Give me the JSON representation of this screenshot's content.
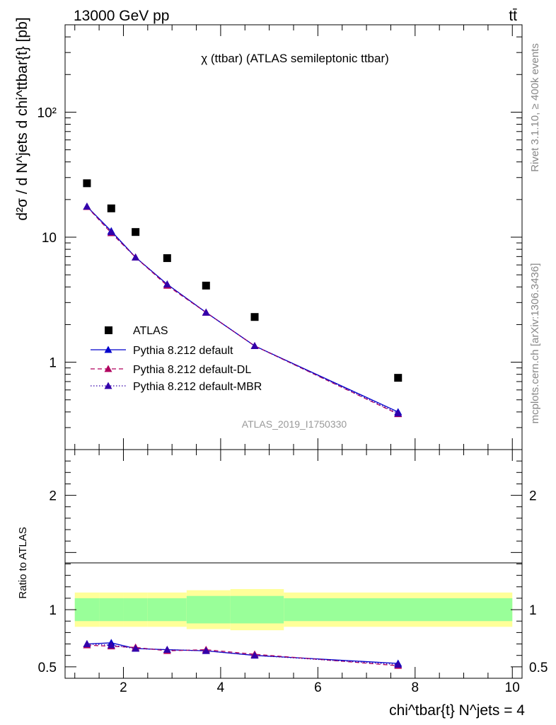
{
  "header": {
    "energy_label": "13000 GeV pp",
    "process_label": "tt̄"
  },
  "side_labels": {
    "rivet": "Rivet 3.1.10, ≥ 400k events",
    "mcplots": "mcplots.cern.ch [arXiv:1306.3436]"
  },
  "chart_data": {
    "type": "scatter",
    "title": "χ (ttbar) (ATLAS semileptonic ttbar)",
    "analysis_id": "ATLAS_2019_I1750330",
    "ylabel_main": "d²σ / d N^jets d chi^ttbar{t} [pb]",
    "ylabel_ratio": "Ratio to ATLAS",
    "xlabel": "chi^tbar{t} N^jets = 4",
    "xlim": [
      0.8,
      10.2
    ],
    "ylim_main": [
      0.2,
      500
    ],
    "ylim_ratio": [
      0.4,
      2.4
    ],
    "yscale_main": "log",
    "x_ticks": [
      2,
      4,
      6,
      8,
      10
    ],
    "y_ticks_main": [
      {
        "value": 1,
        "label": "1"
      },
      {
        "value": 10,
        "label": "10"
      },
      {
        "value": 100,
        "label": "10²"
      }
    ],
    "y_ticks_ratio": [
      {
        "value": 0.5,
        "label": "0.5"
      },
      {
        "value": 1,
        "label": "1"
      },
      {
        "value": 2,
        "label": "2"
      }
    ],
    "x": [
      1.25,
      1.75,
      2.25,
      2.9,
      3.7,
      4.7,
      7.65
    ],
    "bin_edges": [
      1.0,
      1.5,
      2.0,
      2.5,
      3.3,
      4.2,
      5.3,
      10.0
    ],
    "series": [
      {
        "name": "ATLAS",
        "role": "data",
        "color": "#000000",
        "values": [
          27,
          17,
          11,
          6.8,
          4.1,
          2.3,
          0.75
        ]
      },
      {
        "name": "Pythia 8.212 default",
        "color": "#0000cc",
        "dash": "solid",
        "values": [
          17.6,
          11.2,
          6.9,
          4.2,
          2.5,
          1.35,
          0.4
        ],
        "ratio": [
          0.7,
          0.71,
          0.66,
          0.65,
          0.64,
          0.6,
          0.53
        ]
      },
      {
        "name": "Pythia 8.212 default-DL",
        "color": "#b0005e",
        "dash": "dashed",
        "values": [
          17.5,
          10.8,
          6.9,
          4.1,
          2.5,
          1.35,
          0.385
        ],
        "ratio": [
          0.69,
          0.68,
          0.67,
          0.64,
          0.65,
          0.61,
          0.51
        ]
      },
      {
        "name": "Pythia 8.212 default-MBR",
        "color": "#3300aa",
        "dash": "dotted",
        "values": [
          17.6,
          11.0,
          6.9,
          4.2,
          2.5,
          1.35,
          0.39
        ],
        "ratio": [
          0.7,
          0.69,
          0.66,
          0.65,
          0.64,
          0.6,
          0.52
        ]
      }
    ],
    "uncertainty_bands": {
      "stat_color": "#99ff99",
      "total_color": "#ffff99",
      "stat": [
        0.1,
        0.1,
        0.1,
        0.1,
        0.12,
        0.12,
        0.1
      ],
      "total": [
        0.15,
        0.15,
        0.15,
        0.15,
        0.17,
        0.18,
        0.15
      ]
    }
  }
}
